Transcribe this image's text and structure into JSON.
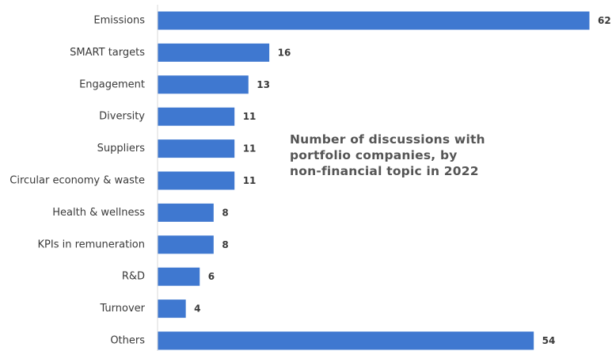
{
  "chart_data": {
    "type": "bar",
    "orientation": "horizontal",
    "title_lines": [
      "Number of discussions with",
      "portfolio companies, by",
      "non-financial topic in 2022"
    ],
    "categories": [
      "Emissions",
      "SMART targets",
      "Engagement",
      "Diversity",
      "Suppliers",
      "Circular economy & waste",
      "Health & wellness",
      "KPIs in remuneration",
      "R&D",
      "Turnover",
      "Others"
    ],
    "values": [
      62,
      16,
      13,
      11,
      11,
      11,
      8,
      8,
      6,
      4,
      54
    ],
    "xlim": [
      0,
      62
    ],
    "grid": false,
    "legend": "none",
    "bar_color": "#3f78d0",
    "axis_color": "#d9d9d9"
  }
}
